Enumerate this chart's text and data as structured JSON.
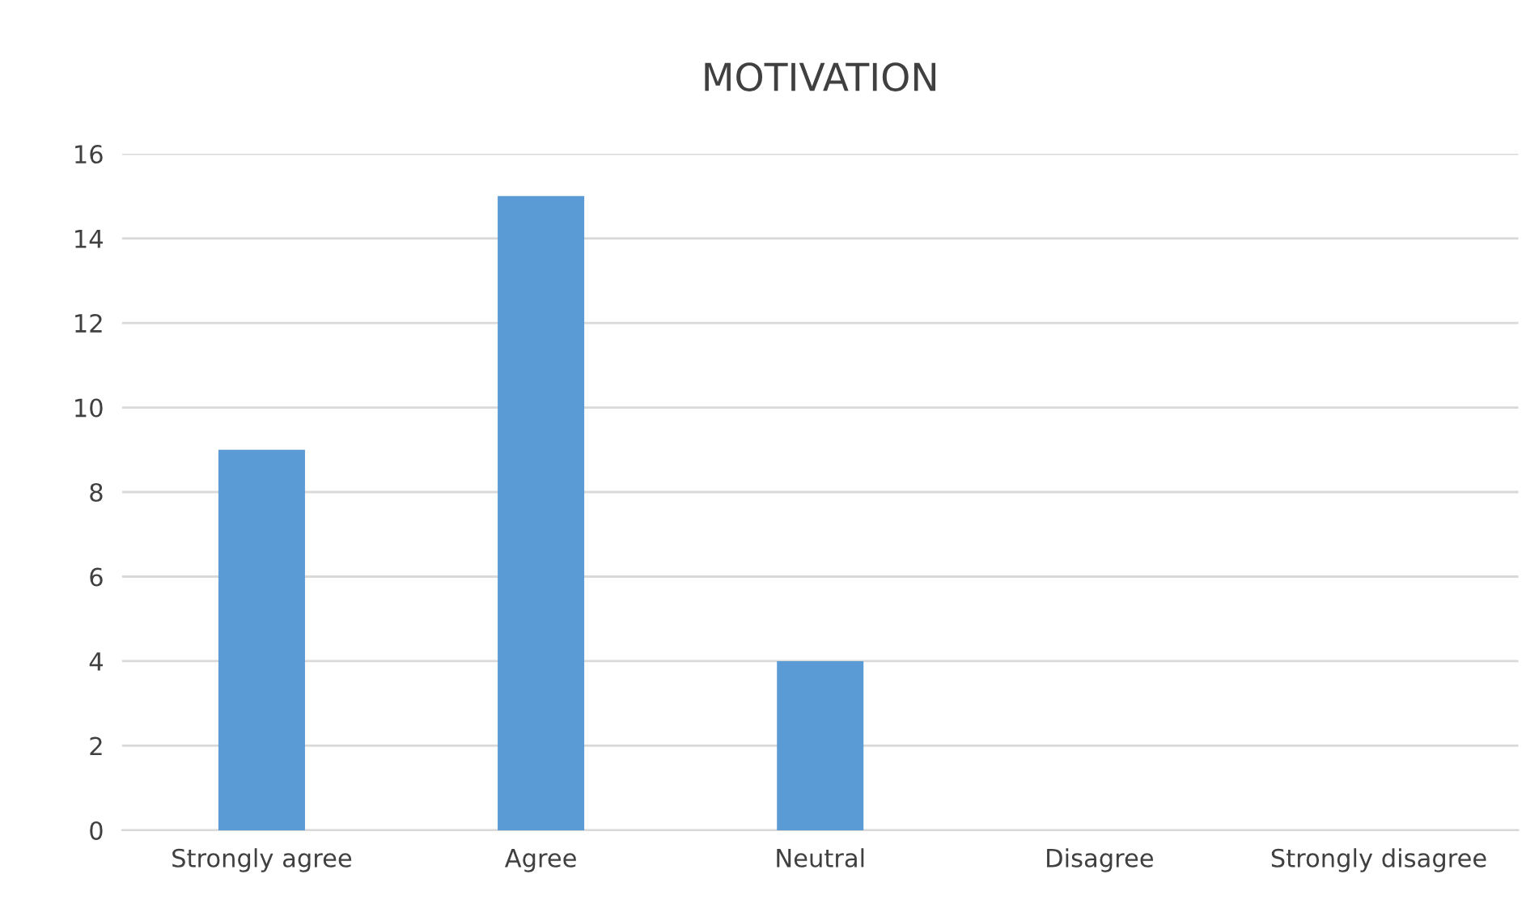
{
  "chart_data": {
    "type": "bar",
    "title": "MOTIVATION",
    "categories": [
      "Strongly agree",
      "Agree",
      "Neutral",
      "Disagree",
      "Strongly disagree"
    ],
    "values": [
      9,
      15,
      4,
      0,
      0
    ],
    "color": "#5b9bd5",
    "ylim": [
      0,
      16
    ],
    "yticks": [
      0,
      2,
      4,
      6,
      8,
      10,
      12,
      14,
      16
    ],
    "grid": "y"
  }
}
